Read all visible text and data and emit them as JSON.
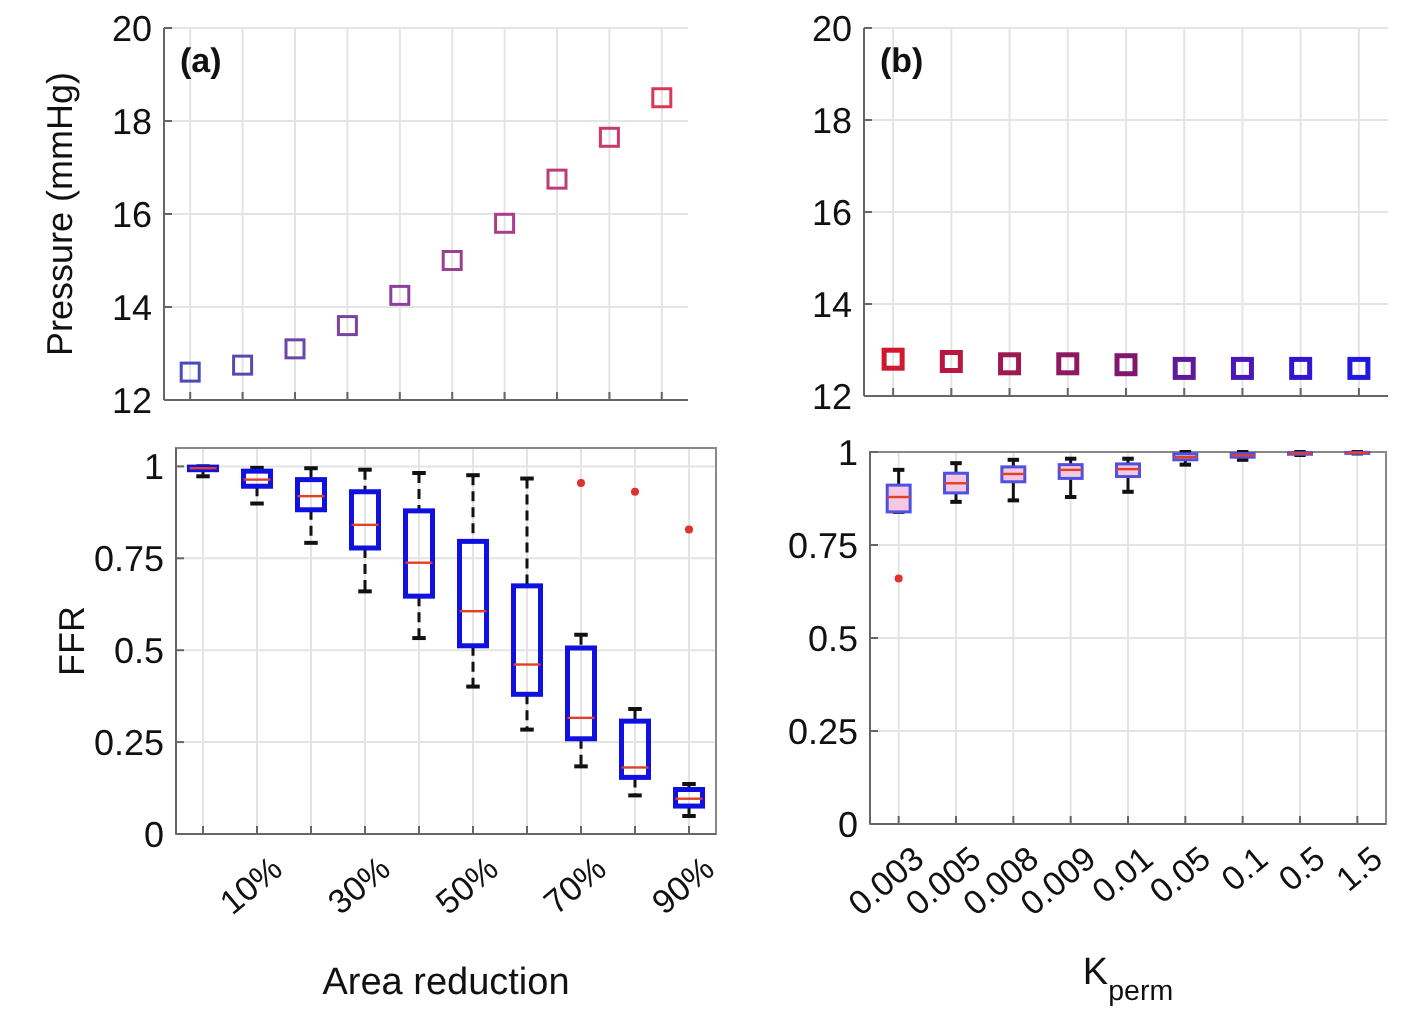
{
  "chart_data": [
    {
      "type": "scatter",
      "ylabel": "Pressure (mmHg)",
      "annotations": [
        "(a)"
      ],
      "categories": [
        null,
        null,
        null,
        null,
        null,
        null,
        null,
        null,
        null,
        null
      ],
      "values": [
        12.6,
        12.75,
        13.1,
        13.6,
        14.25,
        15.0,
        15.8,
        16.75,
        17.65,
        18.5
      ],
      "colors": [
        "#4a4ab8",
        "#5a48b0",
        "#6a46a8",
        "#7a44a0",
        "#8a4298",
        "#9a4090",
        "#aa3e88",
        "#ba3c78",
        "#ca3a68",
        "#da3858"
      ],
      "marker": "square",
      "ylim": [
        12,
        20
      ],
      "yticks": [
        12,
        14,
        16,
        18,
        20
      ],
      "grid": true
    },
    {
      "type": "scatter",
      "annotations": [
        "(b)"
      ],
      "categories": [
        null,
        null,
        null,
        null,
        null,
        null,
        null,
        null,
        null
      ],
      "values": [
        12.8,
        12.75,
        12.7,
        12.7,
        12.68,
        12.6,
        12.6,
        12.6,
        12.6
      ],
      "colors": [
        "#d01830",
        "#b81840",
        "#a01850",
        "#901860",
        "#801870",
        "#60189a",
        "#4818b8",
        "#3018d0",
        "#2018e0"
      ],
      "marker": "square",
      "ylim": [
        12,
        20
      ],
      "yticks": [
        12,
        14,
        16,
        18,
        20
      ],
      "grid": true
    },
    {
      "type": "box",
      "ylabel": "FFR",
      "xlabel": "Area reduction",
      "categories": [
        null,
        "10%",
        null,
        "30%",
        null,
        "50%",
        null,
        "70%",
        null,
        "90%"
      ],
      "color": "#1010e0",
      "ylim": [
        0,
        1.05
      ],
      "yticks": [
        0,
        0.25,
        0.5,
        0.75,
        1
      ],
      "grid": true,
      "boxes": [
        {
          "low": 0.973,
          "q1": 0.991,
          "median": 0.995,
          "q3": 0.998,
          "high": 1.0
        },
        {
          "low": 0.899,
          "q1": 0.946,
          "median": 0.964,
          "q3": 0.987,
          "high": 0.996
        },
        {
          "low": 0.792,
          "q1": 0.882,
          "median": 0.919,
          "q3": 0.964,
          "high": 0.995
        },
        {
          "low": 0.66,
          "q1": 0.778,
          "median": 0.841,
          "q3": 0.931,
          "high": 0.991
        },
        {
          "low": 0.533,
          "q1": 0.647,
          "median": 0.738,
          "q3": 0.879,
          "high": 0.982
        },
        {
          "low": 0.401,
          "q1": 0.512,
          "median": 0.606,
          "q3": 0.796,
          "high": 0.976
        },
        {
          "low": 0.284,
          "q1": 0.38,
          "median": 0.461,
          "q3": 0.675,
          "high": 0.967
        },
        {
          "low": 0.184,
          "q1": 0.259,
          "median": 0.316,
          "q3": 0.506,
          "high": 0.542,
          "outliers": [
            0.955
          ]
        },
        {
          "low": 0.105,
          "q1": 0.154,
          "median": 0.181,
          "q3": 0.307,
          "high": 0.34,
          "outliers": [
            0.931
          ]
        },
        {
          "low": 0.049,
          "q1": 0.076,
          "median": 0.096,
          "q3": 0.121,
          "high": 0.136,
          "outliers": [
            0.828
          ]
        }
      ]
    },
    {
      "type": "box",
      "xlabel": "K$_{perm}$",
      "categories": [
        "0.003",
        "0.005",
        "0.008",
        "0.009",
        "0.01",
        "0.05",
        "0.1",
        "0.5",
        "1.5"
      ],
      "color": "#5050e0",
      "ylim": [
        0,
        1
      ],
      "yticks": [
        0,
        0.25,
        0.5,
        0.75,
        1
      ],
      "grid": true,
      "boxes": [
        {
          "low": 0.839,
          "q1": 0.839,
          "median": 0.879,
          "q3": 0.911,
          "high": 0.952,
          "outliers": [
            0.66
          ]
        },
        {
          "low": 0.866,
          "q1": 0.89,
          "median": 0.916,
          "q3": 0.943,
          "high": 0.97
        },
        {
          "low": 0.87,
          "q1": 0.92,
          "median": 0.941,
          "q3": 0.96,
          "high": 0.979
        },
        {
          "low": 0.879,
          "q1": 0.929,
          "median": 0.952,
          "q3": 0.966,
          "high": 0.982
        },
        {
          "low": 0.893,
          "q1": 0.934,
          "median": 0.954,
          "q3": 0.968,
          "high": 0.982
        },
        {
          "low": 0.966,
          "q1": 0.979,
          "median": 0.986,
          "q3": 0.995,
          "high": 1.0
        },
        {
          "low": 0.979,
          "q1": 0.986,
          "median": 0.991,
          "q3": 0.996,
          "high": 1.0
        },
        {
          "low": 0.992,
          "q1": 0.994,
          "median": 0.996,
          "q3": 0.998,
          "high": 1.0
        },
        {
          "low": 0.996,
          "q1": 0.997,
          "median": 0.998,
          "q3": 0.999,
          "high": 1.0
        }
      ]
    }
  ]
}
